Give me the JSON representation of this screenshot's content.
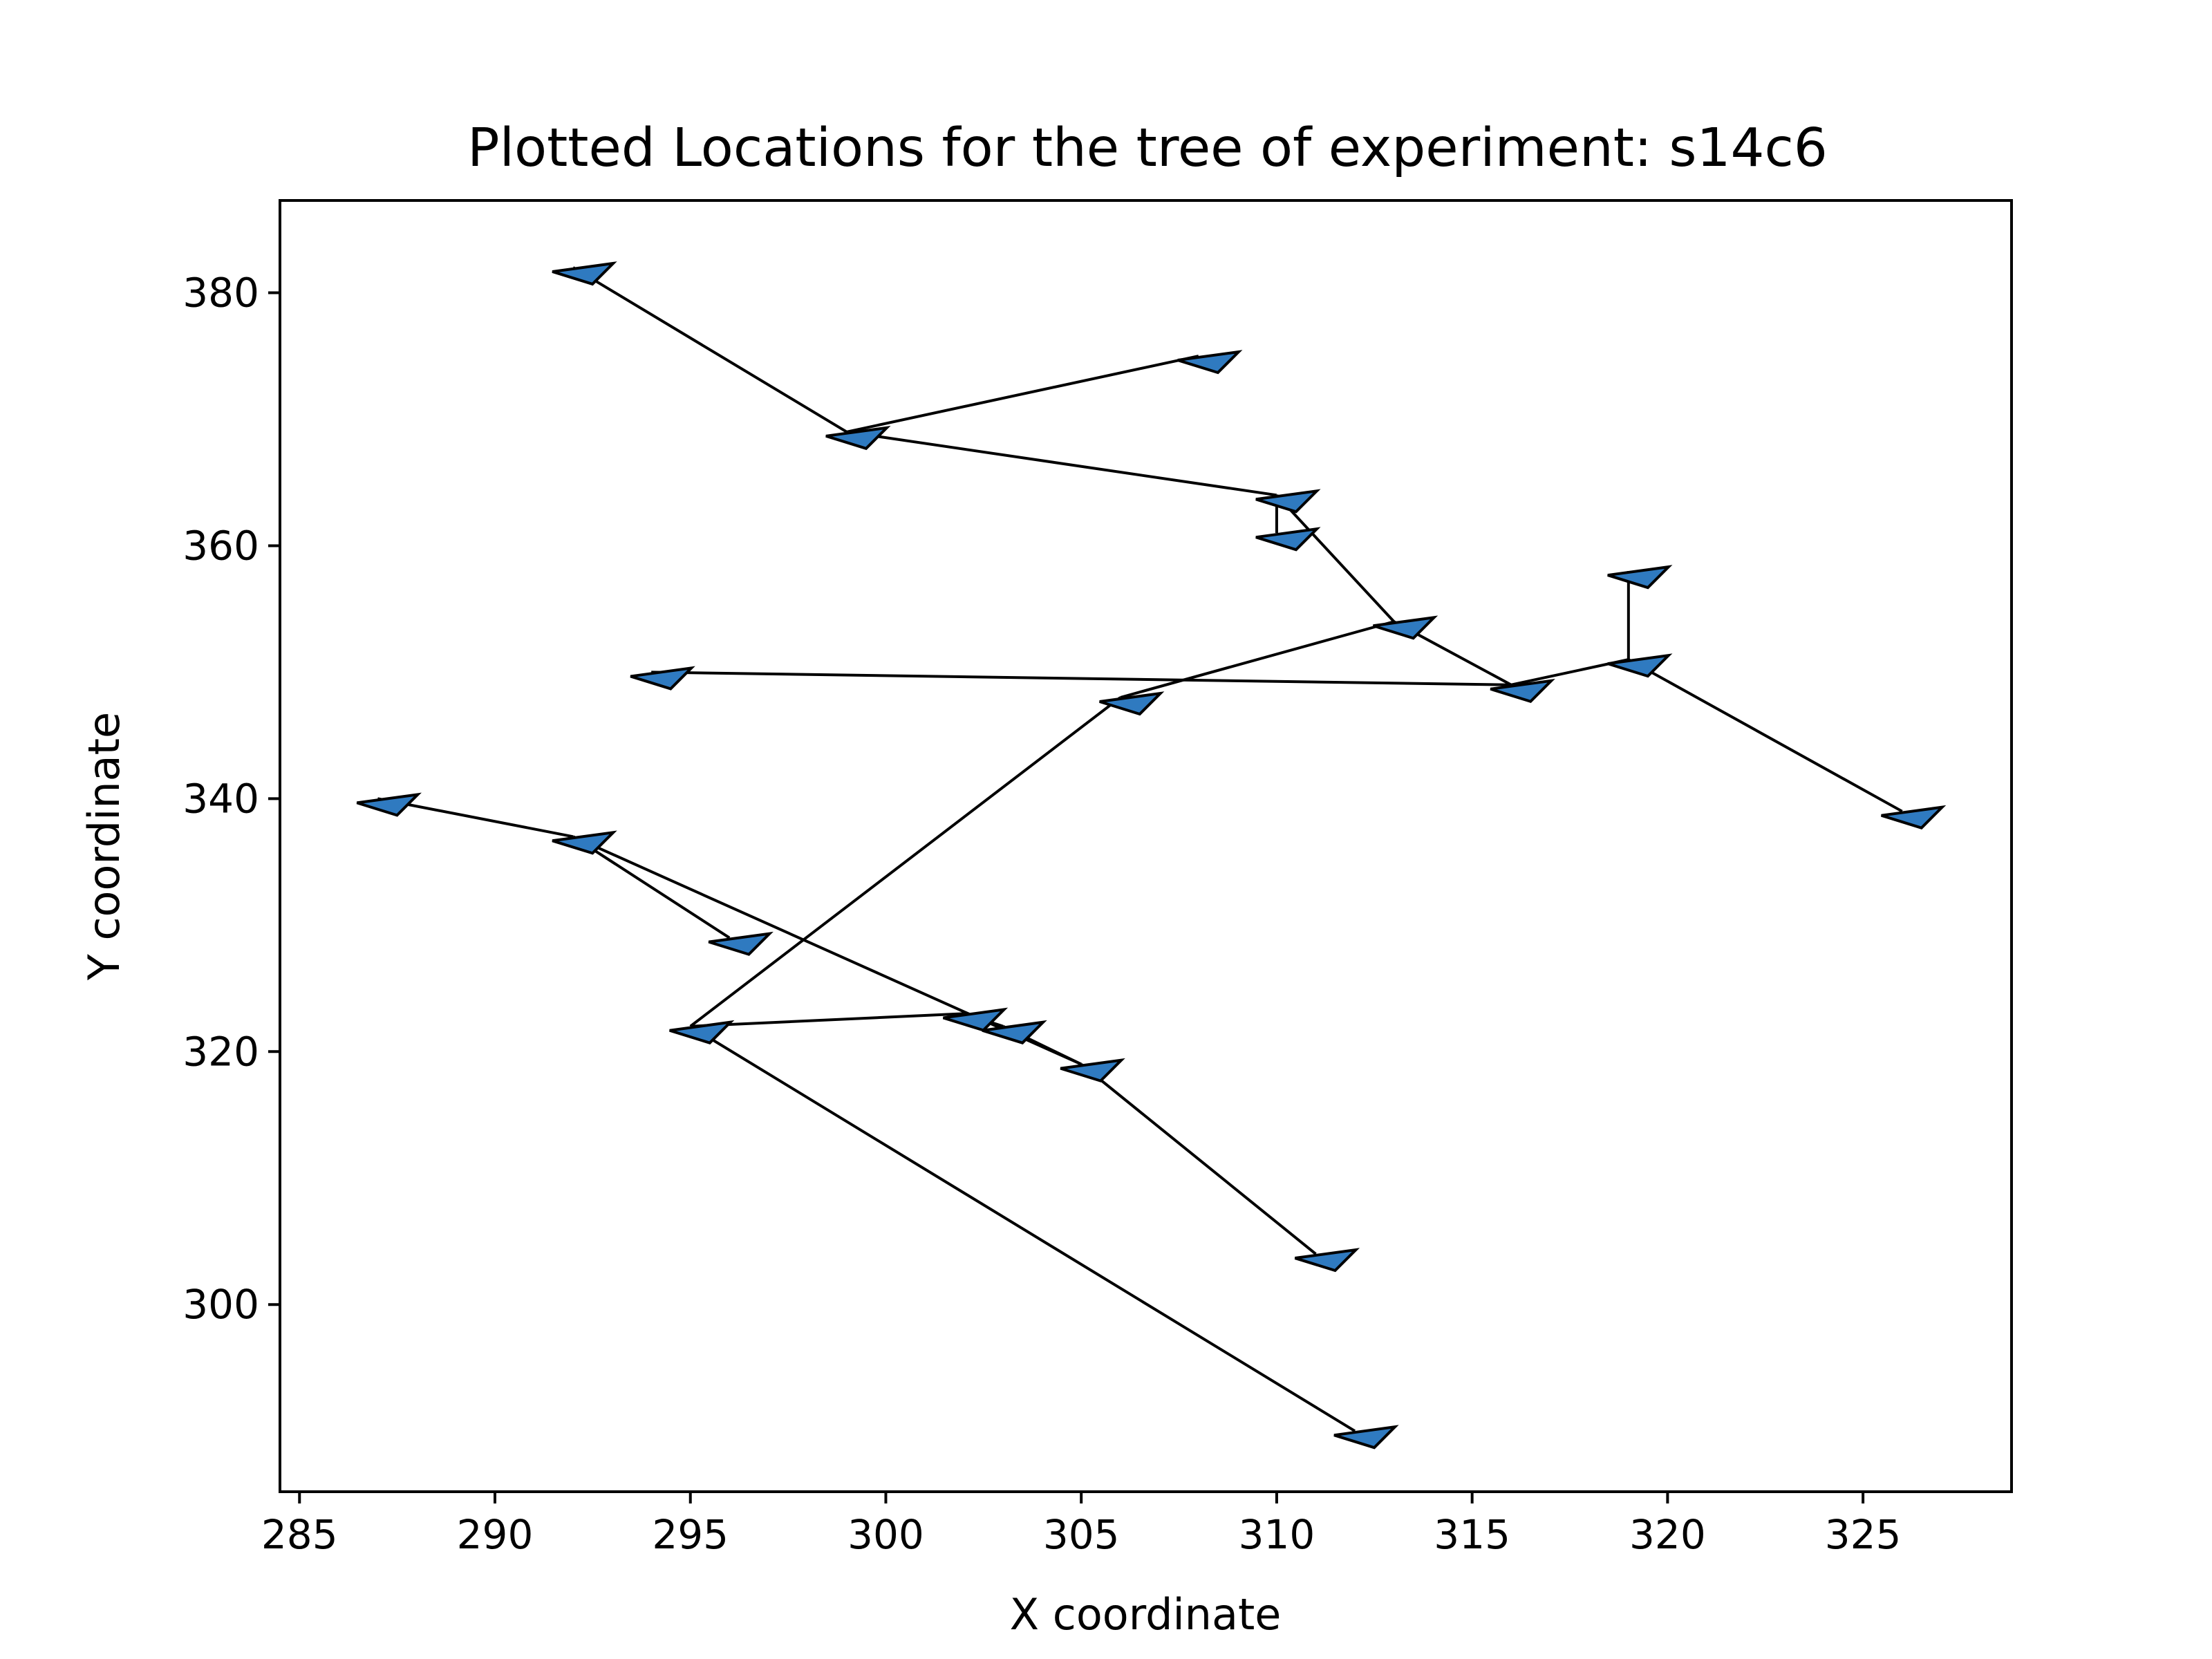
{
  "chart_data": {
    "type": "scatter",
    "title": "Plotted Locations for the tree of experiment: s14c6",
    "xlabel": "X coordinate",
    "ylabel": "Y coordinate",
    "xlim": [
      284.5,
      328.8
    ],
    "ylim": [
      285.2,
      387.3
    ],
    "xticks": [
      285,
      290,
      295,
      300,
      305,
      310,
      315,
      320,
      325
    ],
    "yticks": [
      300,
      320,
      340,
      360,
      380
    ],
    "grid": false,
    "colors": {
      "marker_fill": "#2f7ac0",
      "marker_edge": "#000000",
      "line": "#000000"
    },
    "points": [
      {
        "x": 292,
        "y": 382
      },
      {
        "x": 299,
        "y": 369
      },
      {
        "x": 308,
        "y": 375
      },
      {
        "x": 310,
        "y": 364
      },
      {
        "x": 310,
        "y": 361
      },
      {
        "x": 313,
        "y": 354
      },
      {
        "x": 316,
        "y": 349
      },
      {
        "x": 319,
        "y": 351
      },
      {
        "x": 319,
        "y": 358
      },
      {
        "x": 326,
        "y": 339
      },
      {
        "x": 294,
        "y": 350
      },
      {
        "x": 306,
        "y": 348
      },
      {
        "x": 295,
        "y": 322
      },
      {
        "x": 302,
        "y": 323
      },
      {
        "x": 303,
        "y": 322
      },
      {
        "x": 305,
        "y": 319
      },
      {
        "x": 311,
        "y": 304
      },
      {
        "x": 312,
        "y": 290
      },
      {
        "x": 292,
        "y": 337
      },
      {
        "x": 287,
        "y": 340
      },
      {
        "x": 296,
        "y": 329
      }
    ],
    "segments": [
      [
        [
          292,
          382
        ],
        [
          299,
          369
        ]
      ],
      [
        [
          299,
          369
        ],
        [
          308,
          375
        ]
      ],
      [
        [
          299,
          369
        ],
        [
          310,
          364
        ]
      ],
      [
        [
          310,
          364
        ],
        [
          310,
          361
        ]
      ],
      [
        [
          310,
          364
        ],
        [
          313,
          354
        ]
      ],
      [
        [
          313,
          354
        ],
        [
          316,
          349
        ]
      ],
      [
        [
          316,
          349
        ],
        [
          319,
          351
        ]
      ],
      [
        [
          319,
          351
        ],
        [
          319,
          358
        ]
      ],
      [
        [
          319,
          351
        ],
        [
          326,
          339
        ]
      ],
      [
        [
          316,
          349
        ],
        [
          294,
          350
        ]
      ],
      [
        [
          313,
          354
        ],
        [
          306,
          348
        ]
      ],
      [
        [
          306,
          348
        ],
        [
          295,
          322
        ]
      ],
      [
        [
          295,
          322
        ],
        [
          302,
          323
        ]
      ],
      [
        [
          295,
          322
        ],
        [
          312,
          290
        ]
      ],
      [
        [
          302,
          323
        ],
        [
          303,
          322
        ]
      ],
      [
        [
          303,
          322
        ],
        [
          305,
          319
        ]
      ],
      [
        [
          305,
          319
        ],
        [
          311,
          304
        ]
      ],
      [
        [
          305,
          319
        ],
        [
          292,
          337
        ]
      ],
      [
        [
          292,
          337
        ],
        [
          287,
          340
        ]
      ],
      [
        [
          292,
          337
        ],
        [
          296,
          329
        ]
      ]
    ]
  }
}
